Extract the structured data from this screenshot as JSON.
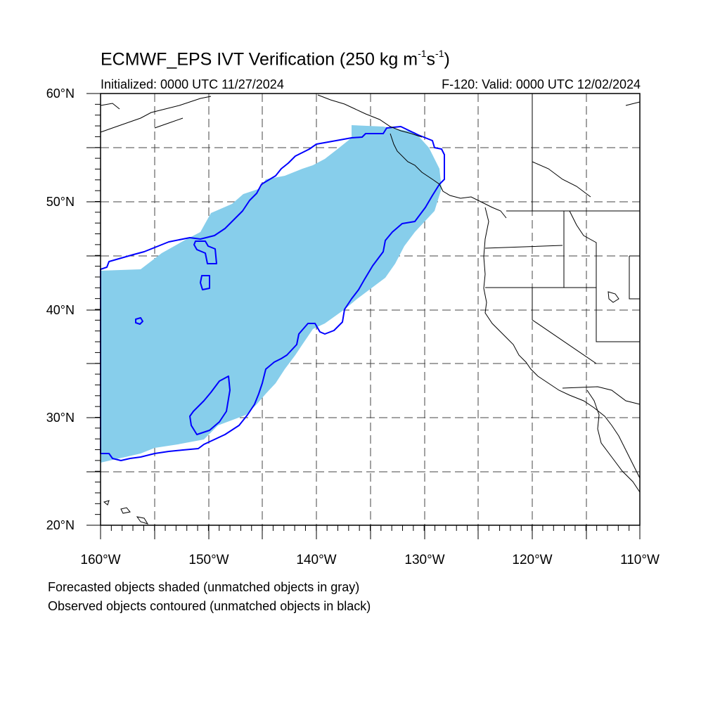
{
  "title": {
    "main": "ECMWF_EPS IVT Verification (250 kg m",
    "sup1": "-1",
    "mid": "s",
    "sup2": "-1",
    "close": ")"
  },
  "subtitle_left": "Initialized: 0000 UTC 11/27/2024",
  "subtitle_right": "F-120: Valid: 0000 UTC 12/02/2024",
  "lat_labels": [
    "60°N",
    "50°N",
    "40°N",
    "30°N",
    "20°N"
  ],
  "lon_labels": [
    "160°W",
    "150°W",
    "140°W",
    "130°W",
    "120°W",
    "110°W"
  ],
  "notes": {
    "line1": "Forecasted objects shaded (unmatched objects in gray)",
    "line2": "Observed objects contoured (unmatched objects in black)"
  },
  "map": {
    "extent": {
      "lon": [
        -160,
        -110
      ],
      "lat": [
        20,
        60
      ]
    },
    "gridline_step_deg": 5,
    "forecast_fill_color": "#87ceeb",
    "observed_contour_color": "#0000ff",
    "coastline_color": "#000000"
  }
}
